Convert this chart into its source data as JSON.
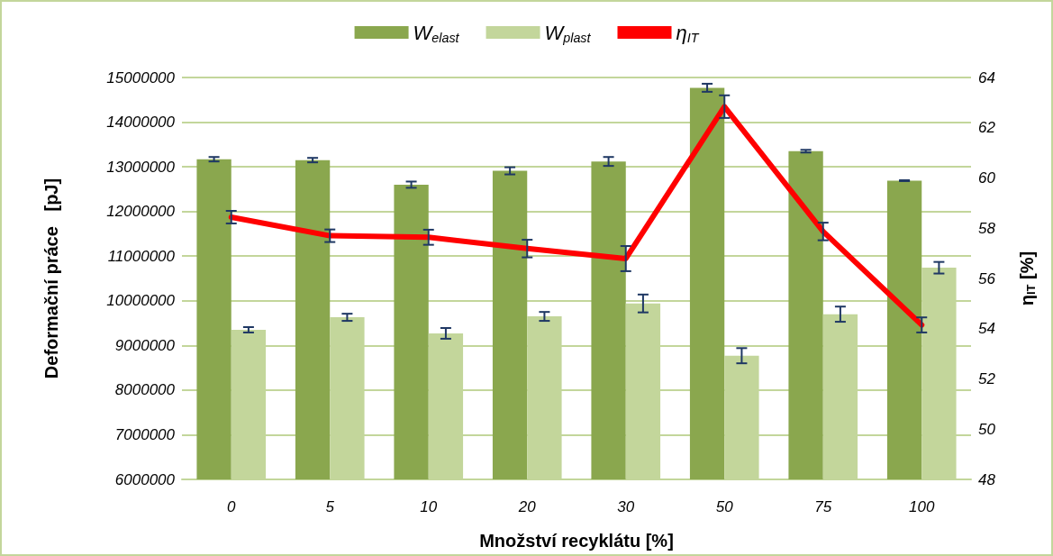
{
  "chart_data": {
    "type": "bar",
    "categories": [
      "0",
      "5",
      "10",
      "20",
      "30",
      "50",
      "75",
      "100"
    ],
    "xlabel": "Množství recyklátu [%]",
    "ylabel": "Deformační práce   [pJ]",
    "y2label": "η$_{IT}$ [%]",
    "series": [
      {
        "name": "W$_{elast}$",
        "color": "#8aa74e",
        "values": [
          13170000,
          13150000,
          12600000,
          12910000,
          13120000,
          14770000,
          13350000,
          12690000
        ],
        "errors": [
          50000,
          50000,
          70000,
          80000,
          100000,
          90000,
          30000,
          10000
        ]
      },
      {
        "name": "W$_{plast}$",
        "color": "#c3d69b",
        "values": [
          9350000,
          9630000,
          9270000,
          9650000,
          9940000,
          8770000,
          9700000,
          10740000
        ],
        "errors": [
          60000,
          80000,
          120000,
          100000,
          200000,
          170000,
          170000,
          130000
        ]
      },
      {
        "name": "η$_{IT}$",
        "type": "line",
        "axis": "y2",
        "color": "#ff0000",
        "values": [
          58.44,
          57.7,
          57.64,
          57.19,
          56.79,
          62.84,
          57.87,
          54.15
        ],
        "errors": [
          0.25,
          0.25,
          0.3,
          0.35,
          0.5,
          0.45,
          0.35,
          0.3
        ]
      }
    ],
    "ylim": [
      6000000,
      15000000
    ],
    "yticks": [
      6000000,
      7000000,
      8000000,
      9000000,
      10000000,
      11000000,
      12000000,
      13000000,
      14000000,
      15000000
    ],
    "y2lim": [
      48,
      64
    ],
    "y2ticks": [
      48,
      50,
      52,
      54,
      56,
      58,
      60,
      62,
      64
    ],
    "grid": "y",
    "legend": "top",
    "marker": "none"
  }
}
